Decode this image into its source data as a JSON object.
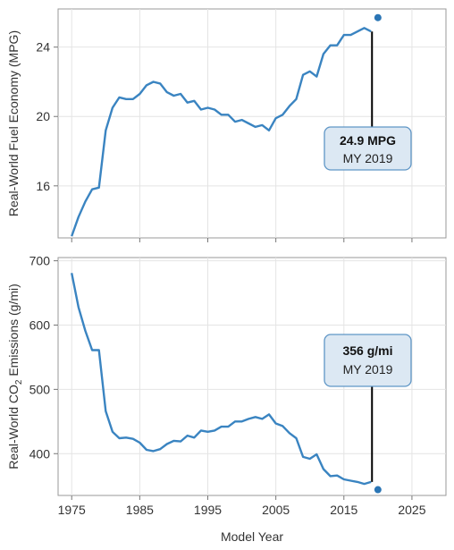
{
  "chart_data": [
    {
      "type": "line",
      "ylabel": "Real-World Fuel Economy (MPG)",
      "ylim": [
        13,
        26.2
      ],
      "xlim": [
        1973,
        2030
      ],
      "yticks": [
        16,
        20,
        24
      ],
      "ytick_labels": [
        "16",
        "20",
        "24"
      ],
      "grid": true,
      "colors": {
        "line": "#3a84c1",
        "point": "#2a75b5",
        "callout_fill": "#dce8f3",
        "callout_border": "#5f96c6"
      },
      "series": [
        {
          "x": [
            1975,
            1976,
            1977,
            1978,
            1979,
            1980,
            1981,
            1982,
            1983,
            1984,
            1985,
            1986,
            1987,
            1988,
            1989,
            1990,
            1991,
            1992,
            1993,
            1994,
            1995,
            1996,
            1997,
            1998,
            1999,
            2000,
            2001,
            2002,
            2003,
            2004,
            2005,
            2006,
            2007,
            2008,
            2009,
            2010,
            2011,
            2012,
            2013,
            2014,
            2015,
            2016,
            2017,
            2018,
            2019
          ],
          "values": [
            13.1,
            14.2,
            15.1,
            15.8,
            15.9,
            19.2,
            20.5,
            21.1,
            21.0,
            21.0,
            21.3,
            21.8,
            22.0,
            21.9,
            21.4,
            21.2,
            21.3,
            20.8,
            20.9,
            20.4,
            20.5,
            20.4,
            20.1,
            20.1,
            19.7,
            19.8,
            19.6,
            19.4,
            19.5,
            19.2,
            19.9,
            20.1,
            20.6,
            21.0,
            22.4,
            22.6,
            22.3,
            23.6,
            24.1,
            24.1,
            24.7,
            24.7,
            24.9,
            25.1,
            24.9
          ]
        }
      ],
      "highlight": {
        "x": 2020,
        "y": 25.7
      },
      "callout": {
        "value_label": "24.9 MPG",
        "year_label": "MY 2019"
      }
    },
    {
      "type": "line",
      "ylabel_main": "Real-World CO",
      "ylabel_sub": "2",
      "ylabel_rest": " Emissions (g/mi)",
      "ylim": [
        335,
        705
      ],
      "xlim": [
        1973,
        2030
      ],
      "yticks": [
        400,
        500,
        600,
        700
      ],
      "ytick_labels": [
        "400",
        "500",
        "600",
        "700"
      ],
      "grid": true,
      "series": [
        {
          "x": [
            1975,
            1976,
            1977,
            1978,
            1979,
            1980,
            1981,
            1982,
            1983,
            1984,
            1985,
            1986,
            1987,
            1988,
            1989,
            1990,
            1991,
            1992,
            1993,
            1994,
            1995,
            1996,
            1997,
            1998,
            1999,
            2000,
            2001,
            2002,
            2003,
            2004,
            2005,
            2006,
            2007,
            2008,
            2009,
            2010,
            2011,
            2012,
            2013,
            2014,
            2015,
            2016,
            2017,
            2018,
            2019
          ],
          "values": [
            681,
            628,
            591,
            561,
            561,
            466,
            434,
            424,
            425,
            423,
            417,
            406,
            404,
            407,
            415,
            420,
            419,
            428,
            425,
            436,
            434,
            436,
            442,
            442,
            450,
            450,
            454,
            457,
            454,
            461,
            447,
            443,
            432,
            424,
            395,
            392,
            399,
            376,
            365,
            366,
            360,
            358,
            356,
            353,
            356
          ]
        }
      ],
      "highlight": {
        "x": 2020,
        "y": 344
      },
      "callout": {
        "value_label": "356 g/mi",
        "year_label": "MY 2019"
      }
    }
  ],
  "x_axis": {
    "label": "Model Year",
    "ticks": [
      1975,
      1985,
      1995,
      2005,
      2015,
      2025
    ],
    "tick_labels": [
      "1975",
      "1985",
      "1995",
      "2005",
      "2015",
      "2025"
    ]
  }
}
